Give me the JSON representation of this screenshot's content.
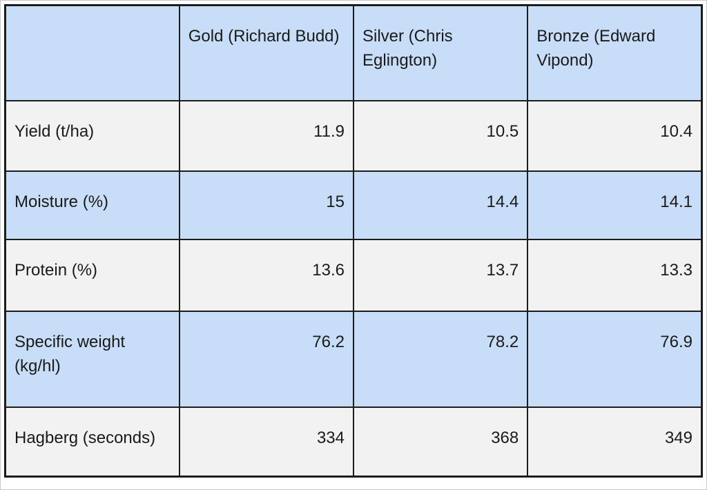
{
  "colors": {
    "page_bg": "#ffffff",
    "frame_border": "#c8c8c8",
    "table_border": "#1c1c1c",
    "row_blue": "#c8ddf7",
    "row_gray": "#f2f2f2",
    "text": "#1a1a1a"
  },
  "table": {
    "headers": [
      "",
      "Gold (Richard Budd)",
      "Silver (Chris Eglington)",
      "Bronze (Edward Vipond)"
    ],
    "rows": [
      {
        "label": "Yield (t/ha)",
        "values": [
          "11.9",
          "10.5",
          "10.4"
        ]
      },
      {
        "label": "Moisture (%)",
        "values": [
          "15",
          "14.4",
          "14.1"
        ]
      },
      {
        "label": "Protein (%)",
        "values": [
          "13.6",
          "13.7",
          "13.3"
        ]
      },
      {
        "label": "Specific weight (kg/hl)",
        "values": [
          "76.2",
          "78.2",
          "76.9"
        ]
      },
      {
        "label": "Hagberg (seconds)",
        "values": [
          "334",
          "368",
          "349"
        ]
      }
    ]
  },
  "chart_data": {
    "type": "table",
    "columns": [
      "",
      "Gold (Richard Budd)",
      "Silver (Chris Eglington)",
      "Bronze (Edward Vipond)"
    ],
    "rows": [
      [
        "Yield (t/ha)",
        11.9,
        10.5,
        10.4
      ],
      [
        "Moisture (%)",
        15,
        14.4,
        14.1
      ],
      [
        "Protein (%)",
        13.6,
        13.7,
        13.3
      ],
      [
        "Specific weight (kg/hl)",
        76.2,
        78.2,
        76.9
      ],
      [
        "Hagberg (seconds)",
        334,
        368,
        349
      ]
    ]
  }
}
